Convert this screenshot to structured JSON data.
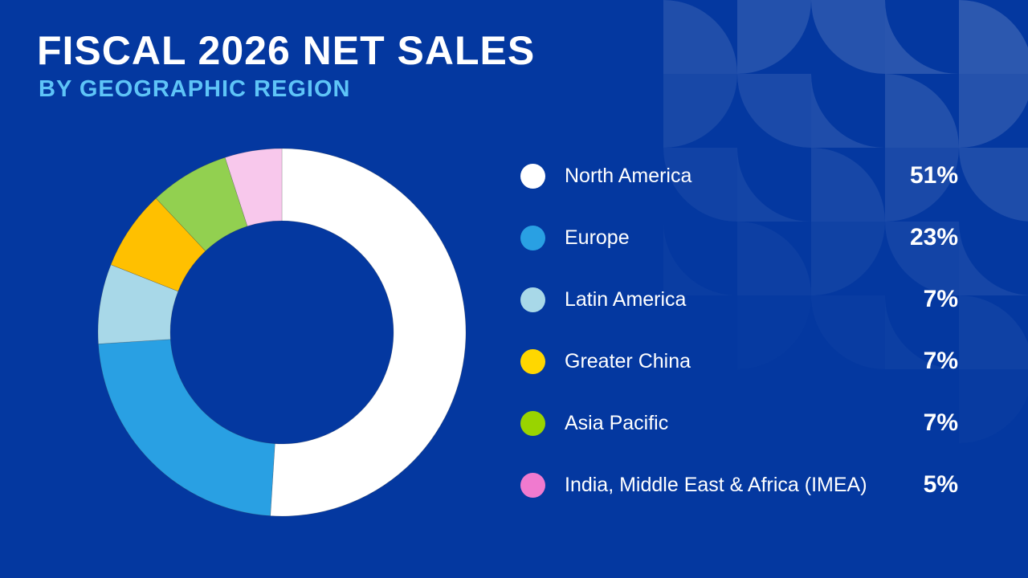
{
  "title": "FISCAL 2026 NET SALES",
  "subtitle": "BY GEOGRAPHIC REGION",
  "colors": {
    "background": "#0438A0",
    "subtitle": "#5EC4F7"
  },
  "chart_data": {
    "type": "pie",
    "variant": "donut",
    "title": "FISCAL 2026 NET SALES",
    "subtitle": "BY GEOGRAPHIC REGION",
    "legend_position": "right",
    "categories": [
      "North America",
      "Europe",
      "Latin America",
      "Greater China",
      "Asia Pacific",
      "India, Middle East & Africa (IMEA)"
    ],
    "values": [
      51,
      23,
      7,
      7,
      7,
      5
    ],
    "value_labels": [
      "51%",
      "23%",
      "7%",
      "7%",
      "7%",
      "5%"
    ],
    "colors": [
      "#FFFFFF",
      "#29A0E3",
      "#A8D8E8",
      "#FFC000",
      "#92D050",
      "#F8C8EC"
    ],
    "legend_swatch_colors": [
      "#FFFFFF",
      "#29A0E3",
      "#A8D8E8",
      "#FFD700",
      "#99D400",
      "#F07ACF"
    ]
  }
}
